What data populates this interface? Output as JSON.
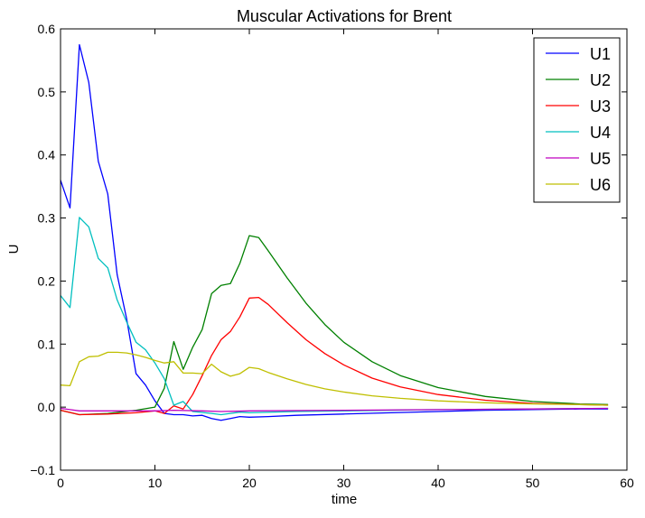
{
  "chart_data": {
    "type": "line",
    "title": "Muscular Activations for Brent",
    "xlabel": "time",
    "ylabel": "U",
    "xlim": [
      0,
      60
    ],
    "ylim": [
      -0.1,
      0.6
    ],
    "xticks": [
      0,
      10,
      20,
      30,
      40,
      50,
      60
    ],
    "xtick_labels": [
      "0",
      "10",
      "20",
      "30",
      "40",
      "50",
      "60"
    ],
    "yticks": [
      -0.1,
      0.0,
      0.1,
      0.2,
      0.3,
      0.4,
      0.5,
      0.6
    ],
    "ytick_labels": [
      "−0.1",
      "0.0",
      "0.1",
      "0.2",
      "0.3",
      "0.4",
      "0.5",
      "0.6"
    ],
    "grid": false,
    "legend_position": "top-right",
    "series": [
      {
        "name": "U1",
        "color": "#0000ff",
        "x": [
          0,
          1,
          2,
          3,
          4,
          5,
          6,
          7,
          8,
          9,
          10,
          11,
          12,
          13,
          14,
          15,
          16,
          17,
          18,
          19,
          20,
          22,
          25,
          30,
          35,
          40,
          45,
          50,
          55,
          58
        ],
        "y": [
          0.36,
          0.316,
          0.575,
          0.515,
          0.39,
          0.338,
          0.21,
          0.14,
          0.053,
          0.035,
          0.01,
          -0.01,
          -0.012,
          -0.012,
          -0.014,
          -0.013,
          -0.018,
          -0.021,
          -0.018,
          -0.015,
          -0.016,
          -0.015,
          -0.013,
          -0.011,
          -0.009,
          -0.007,
          -0.005,
          -0.004,
          -0.003,
          -0.003
        ]
      },
      {
        "name": "U2",
        "color": "#008000",
        "x": [
          0,
          2,
          5,
          8,
          10,
          11,
          12,
          13,
          14,
          15,
          16,
          17,
          18,
          19,
          20,
          21,
          22,
          24,
          26,
          28,
          30,
          33,
          36,
          40,
          45,
          50,
          55,
          58
        ],
        "y": [
          -0.005,
          -0.012,
          -0.01,
          -0.005,
          0.0,
          0.03,
          0.104,
          0.06,
          0.095,
          0.123,
          0.18,
          0.193,
          0.196,
          0.228,
          0.272,
          0.269,
          0.248,
          0.205,
          0.165,
          0.131,
          0.103,
          0.072,
          0.05,
          0.031,
          0.017,
          0.009,
          0.005,
          0.004
        ]
      },
      {
        "name": "U3",
        "color": "#ff0000",
        "x": [
          0,
          2,
          5,
          8,
          10,
          11,
          12,
          13,
          14,
          15,
          16,
          17,
          18,
          19,
          20,
          21,
          22,
          24,
          26,
          28,
          30,
          33,
          36,
          40,
          45,
          50,
          55,
          58
        ],
        "y": [
          -0.005,
          -0.012,
          -0.011,
          -0.009,
          -0.006,
          -0.01,
          0.002,
          -0.003,
          0.02,
          0.05,
          0.082,
          0.107,
          0.12,
          0.143,
          0.173,
          0.174,
          0.163,
          0.134,
          0.107,
          0.085,
          0.067,
          0.046,
          0.032,
          0.02,
          0.011,
          0.006,
          0.004,
          0.003
        ]
      },
      {
        "name": "U4",
        "color": "#00bfbf",
        "x": [
          0,
          1,
          2,
          3,
          4,
          5,
          6,
          7,
          8,
          9,
          10,
          11,
          12,
          13,
          14,
          16,
          17,
          18,
          19,
          20,
          25,
          30,
          40,
          50,
          58
        ],
        "y": [
          0.177,
          0.158,
          0.301,
          0.286,
          0.236,
          0.221,
          0.17,
          0.135,
          0.103,
          0.091,
          0.07,
          0.045,
          0.003,
          0.009,
          -0.007,
          -0.01,
          -0.012,
          -0.01,
          -0.008,
          -0.009,
          -0.007,
          -0.006,
          -0.004,
          -0.003,
          -0.002
        ]
      },
      {
        "name": "U5",
        "color": "#bf00bf",
        "x": [
          0,
          1,
          2,
          5,
          10,
          12,
          15,
          17,
          20,
          30,
          40,
          50,
          58
        ],
        "y": [
          -0.002,
          -0.004,
          -0.006,
          -0.006,
          -0.006,
          -0.005,
          -0.006,
          -0.007,
          -0.006,
          -0.005,
          -0.004,
          -0.003,
          -0.002
        ]
      },
      {
        "name": "U6",
        "color": "#bfbf00",
        "x": [
          0,
          1,
          2,
          3,
          4,
          5,
          6,
          7,
          8,
          9,
          10,
          11,
          12,
          13,
          14,
          15,
          16,
          17,
          18,
          19,
          20,
          21,
          22,
          24,
          26,
          28,
          30,
          33,
          36,
          40,
          45,
          50,
          55,
          58
        ],
        "y": [
          0.035,
          0.034,
          0.072,
          0.08,
          0.081,
          0.087,
          0.087,
          0.086,
          0.083,
          0.079,
          0.074,
          0.07,
          0.072,
          0.054,
          0.054,
          0.053,
          0.068,
          0.056,
          0.049,
          0.053,
          0.063,
          0.061,
          0.055,
          0.045,
          0.036,
          0.029,
          0.024,
          0.018,
          0.014,
          0.01,
          0.007,
          0.005,
          0.004,
          0.003
        ]
      }
    ]
  }
}
